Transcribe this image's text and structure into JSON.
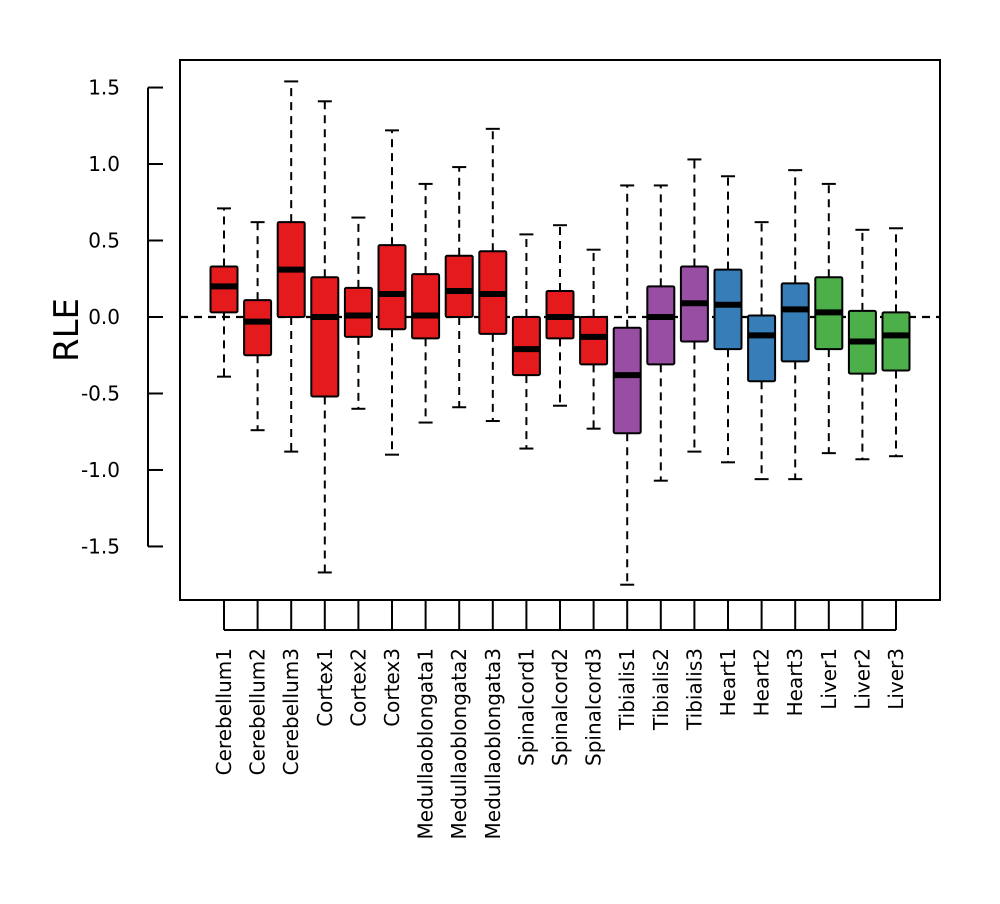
{
  "chart_data": {
    "type": "boxplot",
    "title": "",
    "xlabel": "",
    "ylabel": "RLE",
    "ylim": [
      -1.85,
      1.68
    ],
    "yticks": [
      -1.5,
      -1.0,
      -0.5,
      0.0,
      0.5,
      1.0,
      1.5
    ],
    "ytick_labels": [
      "-1.5",
      "-1.0",
      "-0.5",
      "0.0",
      "0.5",
      "1.0",
      "1.5"
    ],
    "reference_line": 0.0,
    "grid": false,
    "legend": "none",
    "colors": {
      "red": "#e41a1c",
      "purple": "#984ea3",
      "blue": "#377eb8",
      "green": "#4daf4a"
    },
    "boxes": [
      {
        "label": "Cerebellum1",
        "color": "#e41a1c",
        "whisker_low": -0.39,
        "q1": 0.03,
        "median": 0.2,
        "q3": 0.33,
        "whisker_high": 0.71
      },
      {
        "label": "Cerebellum2",
        "color": "#e41a1c",
        "whisker_low": -0.74,
        "q1": -0.25,
        "median": -0.03,
        "q3": 0.11,
        "whisker_high": 0.62
      },
      {
        "label": "Cerebellum3",
        "color": "#e41a1c",
        "whisker_low": -0.88,
        "q1": 0.0,
        "median": 0.31,
        "q3": 0.62,
        "whisker_high": 1.54
      },
      {
        "label": "Cortex1",
        "color": "#e41a1c",
        "whisker_low": -1.67,
        "q1": -0.52,
        "median": 0.0,
        "q3": 0.26,
        "whisker_high": 1.41
      },
      {
        "label": "Cortex2",
        "color": "#e41a1c",
        "whisker_low": -0.6,
        "q1": -0.13,
        "median": 0.01,
        "q3": 0.19,
        "whisker_high": 0.65
      },
      {
        "label": "Cortex3",
        "color": "#e41a1c",
        "whisker_low": -0.9,
        "q1": -0.08,
        "median": 0.15,
        "q3": 0.47,
        "whisker_high": 1.22
      },
      {
        "label": "Medullaoblongata1",
        "color": "#e41a1c",
        "whisker_low": -0.69,
        "q1": -0.14,
        "median": 0.01,
        "q3": 0.28,
        "whisker_high": 0.87
      },
      {
        "label": "Medullaoblongata2",
        "color": "#e41a1c",
        "whisker_low": -0.59,
        "q1": 0.0,
        "median": 0.17,
        "q3": 0.4,
        "whisker_high": 0.98
      },
      {
        "label": "Medullaoblongata3",
        "color": "#e41a1c",
        "whisker_low": -0.68,
        "q1": -0.11,
        "median": 0.15,
        "q3": 0.43,
        "whisker_high": 1.23
      },
      {
        "label": "Spinalcord1",
        "color": "#e41a1c",
        "whisker_low": -0.86,
        "q1": -0.38,
        "median": -0.21,
        "q3": 0.0,
        "whisker_high": 0.54
      },
      {
        "label": "Spinalcord2",
        "color": "#e41a1c",
        "whisker_low": -0.58,
        "q1": -0.14,
        "median": 0.0,
        "q3": 0.17,
        "whisker_high": 0.6
      },
      {
        "label": "Spinalcord3",
        "color": "#e41a1c",
        "whisker_low": -0.73,
        "q1": -0.31,
        "median": -0.13,
        "q3": 0.0,
        "whisker_high": 0.44
      },
      {
        "label": "Tibialis1",
        "color": "#984ea3",
        "whisker_low": -1.75,
        "q1": -0.76,
        "median": -0.38,
        "q3": -0.07,
        "whisker_high": 0.86
      },
      {
        "label": "Tibialis2",
        "color": "#984ea3",
        "whisker_low": -1.07,
        "q1": -0.31,
        "median": 0.0,
        "q3": 0.2,
        "whisker_high": 0.86
      },
      {
        "label": "Tibialis3",
        "color": "#984ea3",
        "whisker_low": -0.88,
        "q1": -0.16,
        "median": 0.09,
        "q3": 0.33,
        "whisker_high": 1.03
      },
      {
        "label": "Heart1",
        "color": "#377eb8",
        "whisker_low": -0.95,
        "q1": -0.21,
        "median": 0.08,
        "q3": 0.31,
        "whisker_high": 0.92
      },
      {
        "label": "Heart2",
        "color": "#377eb8",
        "whisker_low": -1.06,
        "q1": -0.42,
        "median": -0.12,
        "q3": 0.01,
        "whisker_high": 0.62
      },
      {
        "label": "Heart3",
        "color": "#377eb8",
        "whisker_low": -1.06,
        "q1": -0.29,
        "median": 0.05,
        "q3": 0.22,
        "whisker_high": 0.96
      },
      {
        "label": "Liver1",
        "color": "#4daf4a",
        "whisker_low": -0.89,
        "q1": -0.21,
        "median": 0.03,
        "q3": 0.26,
        "whisker_high": 0.87
      },
      {
        "label": "Liver2",
        "color": "#4daf4a",
        "whisker_low": -0.93,
        "q1": -0.37,
        "median": -0.16,
        "q3": 0.04,
        "whisker_high": 0.57
      },
      {
        "label": "Liver3",
        "color": "#4daf4a",
        "whisker_low": -0.91,
        "q1": -0.35,
        "median": -0.12,
        "q3": 0.03,
        "whisker_high": 0.58
      }
    ]
  }
}
